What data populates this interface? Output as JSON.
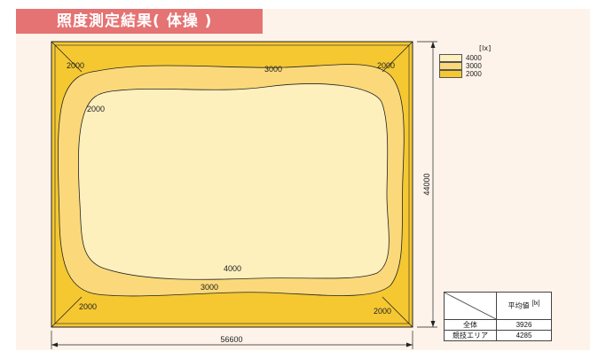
{
  "title": "照度測定結果( 体操 )",
  "colors": {
    "panel_bg": "#fdf3ea",
    "title_bg": "#e57373",
    "zone_2000": "#f5c832",
    "zone_3000": "#fbd97a",
    "zone_4000": "#fdf0bd",
    "outline": "#222222"
  },
  "diagram": {
    "contour_labels": [
      "2000",
      "2000",
      "3000",
      "2000",
      "4000",
      "3000",
      "2000",
      "2000"
    ],
    "width_dimension": "56600",
    "height_dimension": "44000"
  },
  "legend": {
    "unit": "[lx]",
    "items": [
      {
        "label": "4000",
        "color": "#fdf0bd"
      },
      {
        "label": "3000",
        "color": "#fbd97a"
      },
      {
        "label": "2000",
        "color": "#f5c832"
      }
    ]
  },
  "average_table": {
    "header": "平均値",
    "unit": "[lx]",
    "rows": [
      {
        "label": "全体",
        "value": "3926"
      },
      {
        "label": "競技エリア",
        "value": "4285"
      }
    ]
  }
}
